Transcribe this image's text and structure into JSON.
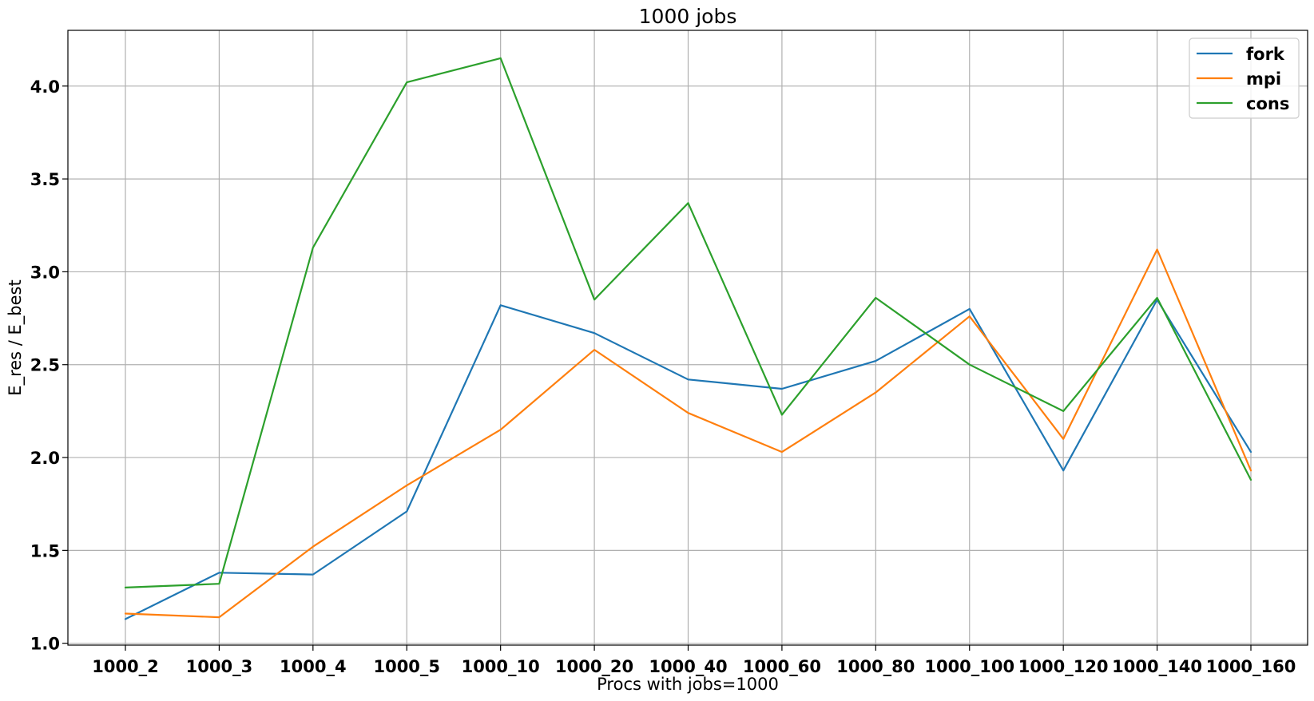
{
  "chart_data": {
    "type": "line",
    "title": "1000 jobs",
    "xlabel": "Procs with jobs=1000",
    "ylabel": "E_res / E_best",
    "categories": [
      "1000_2",
      "1000_3",
      "1000_4",
      "1000_5",
      "1000_10",
      "1000_20",
      "1000_40",
      "1000_60",
      "1000_80",
      "1000_100",
      "1000_120",
      "1000_140",
      "1000_160"
    ],
    "ylim": [
      0.99,
      4.3
    ],
    "yticks": [
      "1.0",
      "1.5",
      "2.0",
      "2.5",
      "3.0",
      "3.5",
      "4.0"
    ],
    "grid": true,
    "legend_position": "top-right",
    "series": [
      {
        "name": "fork",
        "color": "#1f77b4",
        "values": [
          1.13,
          1.38,
          1.37,
          1.71,
          2.82,
          2.67,
          2.42,
          2.37,
          2.52,
          2.8,
          1.93,
          2.85,
          2.03
        ]
      },
      {
        "name": "mpi",
        "color": "#ff7f0e",
        "values": [
          1.16,
          1.14,
          1.52,
          1.85,
          2.15,
          2.58,
          2.24,
          2.03,
          2.35,
          2.76,
          2.1,
          3.12,
          1.93
        ]
      },
      {
        "name": "cons",
        "color": "#2ca02c",
        "values": [
          1.3,
          1.32,
          3.13,
          4.02,
          4.15,
          2.85,
          3.37,
          2.23,
          2.86,
          2.5,
          2.25,
          2.86,
          1.88
        ]
      }
    ]
  }
}
